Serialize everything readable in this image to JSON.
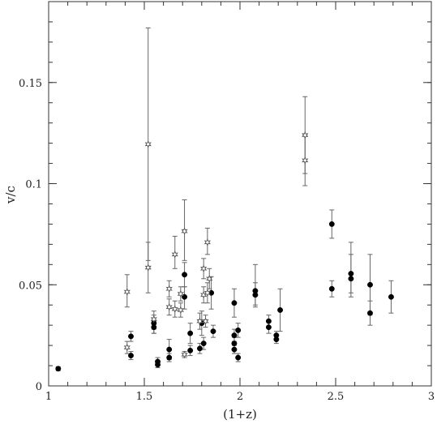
{
  "chart_data": {
    "type": "scatter",
    "title": "",
    "xlabel": "(1+z)",
    "ylabel": "v/c",
    "xlim": [
      1,
      3
    ],
    "ylim": [
      0,
      0.19
    ],
    "xticks": [
      1,
      1.5,
      2,
      2.5,
      3
    ],
    "xtick_labels": [
      "1",
      "1.5",
      "2",
      "2.5",
      "3"
    ],
    "yticks": [
      0,
      0.05,
      0.1,
      0.15
    ],
    "ytick_labels": [
      "0",
      "0.05",
      "0.1",
      "0.15"
    ],
    "grid": false,
    "legend": "none",
    "series": [
      {
        "marker": "filled-circle",
        "color": "#000000",
        "points": [
          {
            "x": 1.05,
            "y": 0.0085,
            "lo": 0.0075,
            "hi": 0.0095
          },
          {
            "x": 1.43,
            "y": 0.0245,
            "lo": 0.022,
            "hi": 0.027
          },
          {
            "x": 1.43,
            "y": 0.015,
            "lo": 0.013,
            "hi": 0.017
          },
          {
            "x": 1.55,
            "y": 0.031,
            "lo": 0.026,
            "hi": 0.035
          },
          {
            "x": 1.55,
            "y": 0.029,
            "lo": 0.026,
            "hi": 0.032
          },
          {
            "x": 1.57,
            "y": 0.012,
            "lo": 0.01,
            "hi": 0.014
          },
          {
            "x": 1.57,
            "y": 0.0105,
            "lo": 0.009,
            "hi": 0.012
          },
          {
            "x": 1.63,
            "y": 0.018,
            "lo": 0.013,
            "hi": 0.023
          },
          {
            "x": 1.63,
            "y": 0.014,
            "lo": 0.012,
            "hi": 0.016
          },
          {
            "x": 1.71,
            "y": 0.055,
            "lo": 0.049,
            "hi": 0.061
          },
          {
            "x": 1.71,
            "y": 0.044,
            "lo": 0.038,
            "hi": 0.049
          },
          {
            "x": 1.74,
            "y": 0.026,
            "lo": 0.021,
            "hi": 0.031
          },
          {
            "x": 1.74,
            "y": 0.0175,
            "lo": 0.015,
            "hi": 0.02
          },
          {
            "x": 1.79,
            "y": 0.0185,
            "lo": 0.016,
            "hi": 0.021
          },
          {
            "x": 1.8,
            "y": 0.031,
            "lo": 0.025,
            "hi": 0.037
          },
          {
            "x": 1.81,
            "y": 0.021,
            "lo": 0.018,
            "hi": 0.024
          },
          {
            "x": 1.85,
            "y": 0.046,
            "lo": 0.038,
            "hi": 0.054
          },
          {
            "x": 1.86,
            "y": 0.027,
            "lo": 0.024,
            "hi": 0.03
          },
          {
            "x": 1.97,
            "y": 0.041,
            "lo": 0.034,
            "hi": 0.048
          },
          {
            "x": 1.97,
            "y": 0.025,
            "lo": 0.022,
            "hi": 0.028
          },
          {
            "x": 1.97,
            "y": 0.021,
            "lo": 0.018,
            "hi": 0.024
          },
          {
            "x": 1.97,
            "y": 0.018,
            "lo": 0.016,
            "hi": 0.02
          },
          {
            "x": 1.99,
            "y": 0.0275,
            "lo": 0.024,
            "hi": 0.031
          },
          {
            "x": 1.99,
            "y": 0.014,
            "lo": 0.012,
            "hi": 0.016
          },
          {
            "x": 2.08,
            "y": 0.047,
            "lo": 0.04,
            "hi": 0.06
          },
          {
            "x": 2.08,
            "y": 0.045,
            "lo": 0.039,
            "hi": 0.051
          },
          {
            "x": 2.15,
            "y": 0.032,
            "lo": 0.029,
            "hi": 0.035
          },
          {
            "x": 2.15,
            "y": 0.029,
            "lo": 0.026,
            "hi": 0.032
          },
          {
            "x": 2.19,
            "y": 0.025,
            "lo": 0.023,
            "hi": 0.027
          },
          {
            "x": 2.19,
            "y": 0.023,
            "lo": 0.021,
            "hi": 0.025
          },
          {
            "x": 2.21,
            "y": 0.0375,
            "lo": 0.027,
            "hi": 0.048
          },
          {
            "x": 2.48,
            "y": 0.08,
            "lo": 0.073,
            "hi": 0.087
          },
          {
            "x": 2.48,
            "y": 0.048,
            "lo": 0.044,
            "hi": 0.052
          },
          {
            "x": 2.58,
            "y": 0.0555,
            "lo": 0.046,
            "hi": 0.065
          },
          {
            "x": 2.58,
            "y": 0.053,
            "lo": 0.044,
            "hi": 0.071
          },
          {
            "x": 2.68,
            "y": 0.05,
            "lo": 0.035,
            "hi": 0.065
          },
          {
            "x": 2.68,
            "y": 0.036,
            "lo": 0.03,
            "hi": 0.042
          },
          {
            "x": 2.79,
            "y": 0.044,
            "lo": 0.036,
            "hi": 0.052
          }
        ]
      },
      {
        "marker": "open-star",
        "color": "#555555",
        "points": [
          {
            "x": 1.41,
            "y": 0.0465,
            "lo": 0.039,
            "hi": 0.055
          },
          {
            "x": 1.41,
            "y": 0.019,
            "lo": 0.016,
            "hi": 0.022
          },
          {
            "x": 1.52,
            "y": 0.1195,
            "lo": 0.062,
            "hi": 0.177
          },
          {
            "x": 1.52,
            "y": 0.0585,
            "lo": 0.046,
            "hi": 0.071
          },
          {
            "x": 1.55,
            "y": 0.033,
            "lo": 0.028,
            "hi": 0.037
          },
          {
            "x": 1.63,
            "y": 0.048,
            "lo": 0.044,
            "hi": 0.052
          },
          {
            "x": 1.63,
            "y": 0.039,
            "lo": 0.035,
            "hi": 0.043
          },
          {
            "x": 1.66,
            "y": 0.065,
            "lo": 0.058,
            "hi": 0.074
          },
          {
            "x": 1.66,
            "y": 0.038,
            "lo": 0.034,
            "hi": 0.042
          },
          {
            "x": 1.69,
            "y": 0.0455,
            "lo": 0.042,
            "hi": 0.049
          },
          {
            "x": 1.69,
            "y": 0.0375,
            "lo": 0.034,
            "hi": 0.041
          },
          {
            "x": 1.71,
            "y": 0.0765,
            "lo": 0.062,
            "hi": 0.092
          },
          {
            "x": 1.71,
            "y": 0.0155,
            "lo": 0.014,
            "hi": 0.017
          },
          {
            "x": 1.79,
            "y": 0.032,
            "lo": 0.028,
            "hi": 0.036
          },
          {
            "x": 1.81,
            "y": 0.058,
            "lo": 0.053,
            "hi": 0.063
          },
          {
            "x": 1.81,
            "y": 0.045,
            "lo": 0.041,
            "hi": 0.049
          },
          {
            "x": 1.82,
            "y": 0.032,
            "lo": 0.029,
            "hi": 0.035
          },
          {
            "x": 1.83,
            "y": 0.071,
            "lo": 0.065,
            "hi": 0.078
          },
          {
            "x": 1.83,
            "y": 0.046,
            "lo": 0.041,
            "hi": 0.051
          },
          {
            "x": 1.84,
            "y": 0.053,
            "lo": 0.048,
            "hi": 0.058
          },
          {
            "x": 2.34,
            "y": 0.124,
            "lo": 0.105,
            "hi": 0.143
          },
          {
            "x": 2.34,
            "y": 0.1115,
            "lo": 0.099,
            "hi": 0.124
          }
        ]
      }
    ]
  }
}
